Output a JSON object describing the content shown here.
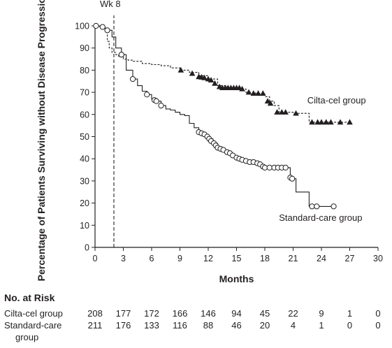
{
  "chart_data": {
    "type": "line",
    "title": "",
    "xlabel": "Months",
    "ylabel": "Percentage of Patients Surviving without Disease Progression",
    "xlim": [
      0,
      30
    ],
    "ylim": [
      0,
      100
    ],
    "x_ticks": [
      0,
      3,
      6,
      9,
      12,
      15,
      18,
      21,
      24,
      27,
      30
    ],
    "y_ticks": [
      0,
      10,
      20,
      30,
      40,
      50,
      60,
      70,
      80,
      90,
      100
    ],
    "grid": false,
    "reference_line": {
      "x": 2,
      "label": "Wk 8",
      "style": "dashed"
    },
    "series": [
      {
        "name": "Cilta-cel group",
        "line_style": "dashed",
        "censor_marker": "triangle",
        "steps": [
          [
            0,
            100
          ],
          [
            0.5,
            99.5
          ],
          [
            0.9,
            99
          ],
          [
            1.2,
            97
          ],
          [
            1.3,
            93
          ],
          [
            1.5,
            90
          ],
          [
            1.8,
            88
          ],
          [
            2.2,
            87
          ],
          [
            2.5,
            86
          ],
          [
            3,
            85
          ],
          [
            3.5,
            84.5
          ],
          [
            4,
            84
          ],
          [
            5,
            83
          ],
          [
            6,
            82.5
          ],
          [
            7,
            82
          ],
          [
            8,
            81
          ],
          [
            9,
            80
          ],
          [
            10,
            79
          ],
          [
            11,
            77.5
          ],
          [
            12,
            76
          ],
          [
            13,
            73
          ],
          [
            14,
            72
          ],
          [
            15,
            71.5
          ],
          [
            16,
            70
          ],
          [
            17,
            69.5
          ],
          [
            18,
            68
          ],
          [
            18.5,
            66
          ],
          [
            19,
            64
          ],
          [
            19.5,
            61
          ],
          [
            21,
            60.5
          ],
          [
            22.7,
            56.5
          ],
          [
            27,
            56.5
          ]
        ],
        "censor_points": [
          [
            9.1,
            80
          ],
          [
            10.3,
            78.5
          ],
          [
            11,
            77
          ],
          [
            11.3,
            76.8
          ],
          [
            11.6,
            76.5
          ],
          [
            12,
            76
          ],
          [
            12.3,
            75.5
          ],
          [
            12.7,
            74
          ],
          [
            13.2,
            72.5
          ],
          [
            13.5,
            72
          ],
          [
            13.8,
            72
          ],
          [
            14.1,
            72
          ],
          [
            14.4,
            72
          ],
          [
            14.7,
            72
          ],
          [
            15,
            72
          ],
          [
            15.3,
            72
          ],
          [
            15.6,
            71.5
          ],
          [
            16.3,
            70
          ],
          [
            16.8,
            69.5
          ],
          [
            17.3,
            69.5
          ],
          [
            17.8,
            69.5
          ],
          [
            18.3,
            66
          ],
          [
            18.6,
            65
          ],
          [
            19.3,
            61
          ],
          [
            19.8,
            61
          ],
          [
            20.2,
            61
          ],
          [
            21.3,
            60.5
          ],
          [
            23,
            56.5
          ],
          [
            23.6,
            56.5
          ],
          [
            24,
            56.5
          ],
          [
            24.5,
            56.5
          ],
          [
            25,
            56.5
          ],
          [
            26,
            56.5
          ],
          [
            27,
            56.5
          ]
        ]
      },
      {
        "name": "Standard-care group",
        "line_style": "solid",
        "censor_marker": "circle",
        "steps": [
          [
            0,
            100
          ],
          [
            0.5,
            99.5
          ],
          [
            0.9,
            99
          ],
          [
            1.3,
            98
          ],
          [
            1.8,
            95
          ],
          [
            2.2,
            90
          ],
          [
            2.8,
            87
          ],
          [
            3.3,
            80
          ],
          [
            4,
            76
          ],
          [
            4.5,
            73
          ],
          [
            5,
            70.5
          ],
          [
            5.5,
            69
          ],
          [
            6,
            67
          ],
          [
            6.5,
            66
          ],
          [
            7,
            64
          ],
          [
            7.5,
            62.5
          ],
          [
            8,
            62
          ],
          [
            8.5,
            61
          ],
          [
            9,
            60
          ],
          [
            9.5,
            59.5
          ],
          [
            10,
            56
          ],
          [
            10.5,
            54
          ],
          [
            11,
            52
          ],
          [
            11.5,
            51
          ],
          [
            12,
            49
          ],
          [
            12.5,
            47
          ],
          [
            13,
            45
          ],
          [
            13.5,
            44
          ],
          [
            14,
            42.5
          ],
          [
            14.5,
            41
          ],
          [
            15,
            40
          ],
          [
            15.5,
            39.5
          ],
          [
            16,
            38.5
          ],
          [
            17,
            38
          ],
          [
            17.5,
            37
          ],
          [
            18,
            36
          ],
          [
            19,
            36
          ],
          [
            20.5,
            36
          ],
          [
            20.7,
            31
          ],
          [
            21,
            31
          ],
          [
            21.3,
            25
          ],
          [
            22.7,
            18.5
          ],
          [
            25.3,
            18.5
          ]
        ],
        "censor_points": [
          [
            0.1,
            100
          ],
          [
            0.8,
            99.5
          ],
          [
            1.3,
            98
          ],
          [
            2.8,
            87
          ],
          [
            4,
            76
          ],
          [
            5.5,
            69
          ],
          [
            6.3,
            66.5
          ],
          [
            6.5,
            66
          ],
          [
            7,
            64
          ],
          [
            11,
            52
          ],
          [
            11.3,
            51.5
          ],
          [
            11.6,
            51
          ],
          [
            11.9,
            50
          ],
          [
            12.1,
            49
          ],
          [
            12.3,
            48
          ],
          [
            12.6,
            47
          ],
          [
            12.8,
            46
          ],
          [
            13,
            45
          ],
          [
            13.3,
            44.5
          ],
          [
            13.6,
            44
          ],
          [
            14,
            43
          ],
          [
            14.3,
            42.5
          ],
          [
            14.6,
            41.5
          ],
          [
            15,
            40.5
          ],
          [
            15.3,
            40
          ],
          [
            15.6,
            39.5
          ],
          [
            16,
            39
          ],
          [
            16.4,
            38.5
          ],
          [
            16.8,
            38.5
          ],
          [
            17.2,
            38
          ],
          [
            17.5,
            37.5
          ],
          [
            17.8,
            36.5
          ],
          [
            18,
            36
          ],
          [
            18.5,
            36
          ],
          [
            19,
            36
          ],
          [
            19.4,
            36
          ],
          [
            19.8,
            36
          ],
          [
            20.2,
            36
          ],
          [
            20.7,
            31.5
          ],
          [
            20.9,
            31
          ],
          [
            23,
            18.5
          ],
          [
            23.5,
            18.5
          ],
          [
            25.3,
            18.5
          ]
        ]
      }
    ],
    "annotations": [
      {
        "text": "Wk 8",
        "x": 2,
        "y": 105
      },
      {
        "text": "Cilta-cel group",
        "x": 22.5,
        "y": 65
      },
      {
        "text": "Standard-care group",
        "x": 19.5,
        "y": 12
      }
    ]
  },
  "risk_table": {
    "title": "No. at Risk",
    "months": [
      0,
      3,
      6,
      9,
      12,
      15,
      18,
      21,
      24,
      27,
      30
    ],
    "rows": [
      {
        "label": "Cilta-cel group",
        "label_line2": "",
        "values": [
          "208",
          "177",
          "172",
          "166",
          "146",
          "94",
          "45",
          "22",
          "9",
          "1",
          "0"
        ]
      },
      {
        "label": "Standard-care",
        "label_line2": "group",
        "values": [
          "211",
          "176",
          "133",
          "116",
          "88",
          "46",
          "20",
          "4",
          "1",
          "0",
          "0"
        ]
      }
    ]
  }
}
